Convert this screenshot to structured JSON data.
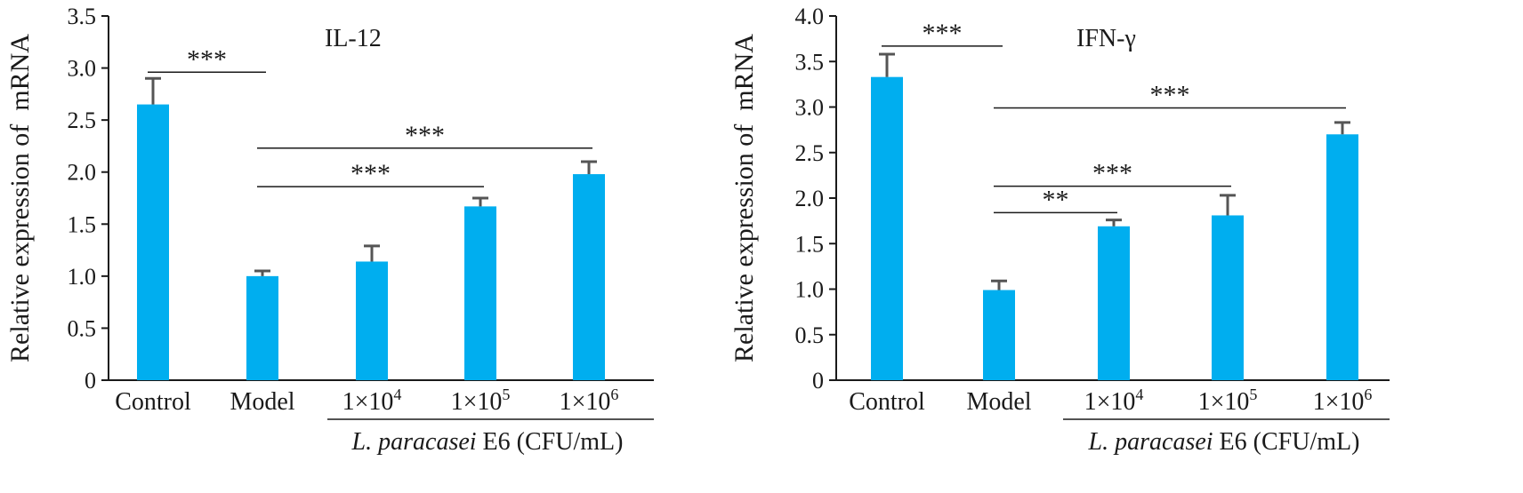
{
  "chart_data": [
    {
      "type": "bar",
      "title": "IL-12",
      "ylabel": "Relative expression of  mRNA",
      "ylim": [
        0,
        3.5
      ],
      "yticks": [
        "0",
        "0.5",
        "1.0",
        "1.5",
        "2.0",
        "2.5",
        "3.0",
        "3.5"
      ],
      "categories": [
        {
          "label": "Control"
        },
        {
          "label": "Model"
        },
        {
          "label": "1×10",
          "sup": "4"
        },
        {
          "label": "1×10",
          "sup": "5"
        },
        {
          "label": "1×10",
          "sup": "6"
        }
      ],
      "values": [
        2.65,
        1.0,
        1.14,
        1.67,
        1.98
      ],
      "errors": [
        0.25,
        0.05,
        0.15,
        0.08,
        0.12
      ],
      "bar_color": "#00AEEF",
      "error_color": "#555555",
      "group_label": {
        "italic": "L. paracasei",
        "rest": " E6 (CFU/mL)"
      },
      "significance": [
        {
          "from": 0,
          "to": 1,
          "y": 2.96,
          "label": "***"
        },
        {
          "from": 1,
          "to": 4,
          "y": 2.23,
          "label": "***"
        },
        {
          "from": 1,
          "to": 3,
          "y": 1.86,
          "label": "***"
        }
      ]
    },
    {
      "type": "bar",
      "title": "IFN-γ",
      "ylabel": "Relative expression of  mRNA",
      "ylim": [
        0,
        4.0
      ],
      "yticks": [
        "0",
        "0.5",
        "1.0",
        "1.5",
        "2.0",
        "2.5",
        "3.0",
        "3.5",
        "4.0"
      ],
      "categories": [
        {
          "label": "Control"
        },
        {
          "label": "Model"
        },
        {
          "label": "1×10",
          "sup": "4"
        },
        {
          "label": "1×10",
          "sup": "5"
        },
        {
          "label": "1×10",
          "sup": "6"
        }
      ],
      "values": [
        3.33,
        0.99,
        1.69,
        1.81,
        2.7
      ],
      "errors": [
        0.25,
        0.1,
        0.07,
        0.22,
        0.13
      ],
      "bar_color": "#00AEEF",
      "error_color": "#555555",
      "group_label": {
        "italic": "L. paracasei",
        "rest": " E6 (CFU/mL)"
      },
      "significance": [
        {
          "from": 0,
          "to": 1,
          "y": 3.67,
          "label": "***"
        },
        {
          "from": 1,
          "to": 4,
          "y": 2.99,
          "label": "***"
        },
        {
          "from": 1,
          "to": 3,
          "y": 2.13,
          "label": "***"
        },
        {
          "from": 1,
          "to": 2,
          "y": 1.84,
          "label": "**"
        }
      ]
    }
  ]
}
